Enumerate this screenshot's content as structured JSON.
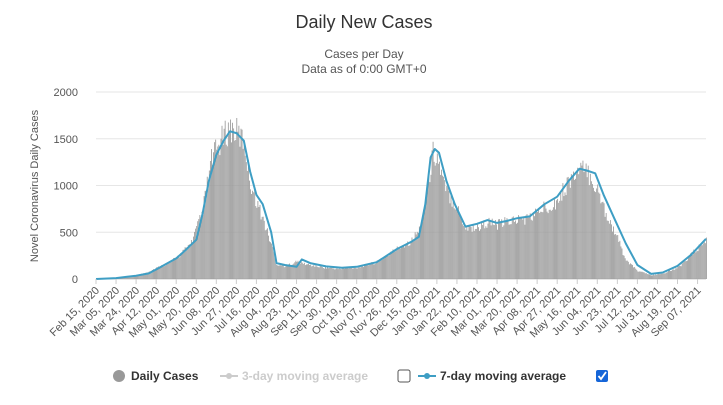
{
  "chart_data": {
    "type": "bar",
    "title": "Daily New Cases",
    "subtitle": "Cases per Day",
    "subtitle2": "Data as of 0:00 GMT+0",
    "ylabel": "Novel Coronavirus Daily Cases",
    "xlabel": "",
    "ylim": [
      0,
      2000
    ],
    "yticks": [
      0,
      500,
      1000,
      1500,
      2000
    ],
    "grid": true,
    "legend_position": "bottom",
    "x_start": "2020-02-15",
    "x_end": "2021-09-15",
    "x_tick_labels": [
      "Feb 15, 2020",
      "Mar 05, 2020",
      "Mar 24, 2020",
      "Apr 12, 2020",
      "May 01, 2020",
      "May 20, 2020",
      "Jun 08, 2020",
      "Jun 27, 2020",
      "Jul 16, 2020",
      "Aug 04, 2020",
      "Aug 23, 2020",
      "Sep 11, 2020",
      "Sep 30, 2020",
      "Oct 19, 2020",
      "Nov 07, 2020",
      "Nov 26, 2020",
      "Dec 15, 2020",
      "Jan 03, 2021",
      "Jan 22, 2021",
      "Feb 10, 2021",
      "Mar 01, 2021",
      "Mar 20, 2021",
      "Apr 08, 2021",
      "Apr 27, 2021",
      "May 16, 2021",
      "Jun 04, 2021",
      "Jun 23, 2021",
      "Jul 12, 2021",
      "Jul 31, 2021",
      "Aug 19, 2021",
      "Sep 07, 2021"
    ],
    "series": [
      {
        "name": "Daily Cases",
        "kind": "bar",
        "color": "#999999",
        "values": [
          {
            "x": "2020-02-15",
            "y": 0
          },
          {
            "x": "2020-03-01",
            "y": 5
          },
          {
            "x": "2020-03-15",
            "y": 20
          },
          {
            "x": "2020-03-31",
            "y": 60
          },
          {
            "x": "2020-04-12",
            "y": 120
          },
          {
            "x": "2020-04-25",
            "y": 180
          },
          {
            "x": "2020-05-06",
            "y": 280
          },
          {
            "x": "2020-05-15",
            "y": 400
          },
          {
            "x": "2020-05-25",
            "y": 700
          },
          {
            "x": "2020-06-03",
            "y": 1300
          },
          {
            "x": "2020-06-12",
            "y": 1500
          },
          {
            "x": "2020-06-20",
            "y": 1650
          },
          {
            "x": "2020-06-27",
            "y": 1600
          },
          {
            "x": "2020-07-04",
            "y": 1500
          },
          {
            "x": "2020-07-10",
            "y": 1050
          },
          {
            "x": "2020-07-16",
            "y": 850
          },
          {
            "x": "2020-07-24",
            "y": 580
          },
          {
            "x": "2020-08-01",
            "y": 300
          },
          {
            "x": "2020-08-04",
            "y": 160
          },
          {
            "x": "2020-08-12",
            "y": 140
          },
          {
            "x": "2020-08-23",
            "y": 190
          },
          {
            "x": "2020-09-01",
            "y": 160
          },
          {
            "x": "2020-09-15",
            "y": 130
          },
          {
            "x": "2020-10-01",
            "y": 110
          },
          {
            "x": "2020-10-19",
            "y": 125
          },
          {
            "x": "2020-11-07",
            "y": 185
          },
          {
            "x": "2020-11-26",
            "y": 330
          },
          {
            "x": "2020-12-10",
            "y": 420
          },
          {
            "x": "2020-12-18",
            "y": 560
          },
          {
            "x": "2020-12-25",
            "y": 1000
          },
          {
            "x": "2020-12-30",
            "y": 1380
          },
          {
            "x": "2021-01-03",
            "y": 1330
          },
          {
            "x": "2021-01-10",
            "y": 1000
          },
          {
            "x": "2021-01-20",
            "y": 820
          },
          {
            "x": "2021-01-30",
            "y": 560
          },
          {
            "x": "2021-02-10",
            "y": 560
          },
          {
            "x": "2021-02-20",
            "y": 620
          },
          {
            "x": "2021-03-01",
            "y": 590
          },
          {
            "x": "2021-03-15",
            "y": 640
          },
          {
            "x": "2021-03-30",
            "y": 660
          },
          {
            "x": "2021-04-15",
            "y": 780
          },
          {
            "x": "2021-04-27",
            "y": 850
          },
          {
            "x": "2021-05-08",
            "y": 1080
          },
          {
            "x": "2021-05-20",
            "y": 1190
          },
          {
            "x": "2021-05-28",
            "y": 1130
          },
          {
            "x": "2021-06-04",
            "y": 960
          },
          {
            "x": "2021-06-12",
            "y": 720
          },
          {
            "x": "2021-06-23",
            "y": 440
          },
          {
            "x": "2021-07-01",
            "y": 200
          },
          {
            "x": "2021-07-12",
            "y": 90
          },
          {
            "x": "2021-07-25",
            "y": 40
          },
          {
            "x": "2021-08-05",
            "y": 60
          },
          {
            "x": "2021-08-19",
            "y": 120
          },
          {
            "x": "2021-09-01",
            "y": 270
          },
          {
            "x": "2021-09-15",
            "y": 420
          }
        ]
      },
      {
        "name": "3-day moving average",
        "kind": "line",
        "color": "#cccccc",
        "enabled": false,
        "values": []
      },
      {
        "name": "7-day moving average",
        "kind": "line",
        "color": "#3e9ec4",
        "enabled": true,
        "values": [
          {
            "x": "2020-02-15",
            "y": 0
          },
          {
            "x": "2020-03-05",
            "y": 10
          },
          {
            "x": "2020-03-24",
            "y": 35
          },
          {
            "x": "2020-04-05",
            "y": 60
          },
          {
            "x": "2020-04-15",
            "y": 120
          },
          {
            "x": "2020-05-01",
            "y": 220
          },
          {
            "x": "2020-05-10",
            "y": 310
          },
          {
            "x": "2020-05-20",
            "y": 420
          },
          {
            "x": "2020-05-26",
            "y": 700
          },
          {
            "x": "2020-06-01",
            "y": 1050
          },
          {
            "x": "2020-06-08",
            "y": 1330
          },
          {
            "x": "2020-06-15",
            "y": 1480
          },
          {
            "x": "2020-06-21",
            "y": 1580
          },
          {
            "x": "2020-06-27",
            "y": 1560
          },
          {
            "x": "2020-07-04",
            "y": 1480
          },
          {
            "x": "2020-07-10",
            "y": 1150
          },
          {
            "x": "2020-07-16",
            "y": 900
          },
          {
            "x": "2020-07-22",
            "y": 800
          },
          {
            "x": "2020-07-30",
            "y": 500
          },
          {
            "x": "2020-08-04",
            "y": 170
          },
          {
            "x": "2020-08-12",
            "y": 150
          },
          {
            "x": "2020-08-23",
            "y": 130
          },
          {
            "x": "2020-08-28",
            "y": 210
          },
          {
            "x": "2020-09-05",
            "y": 170
          },
          {
            "x": "2020-09-20",
            "y": 135
          },
          {
            "x": "2020-10-05",
            "y": 120
          },
          {
            "x": "2020-10-19",
            "y": 130
          },
          {
            "x": "2020-11-07",
            "y": 180
          },
          {
            "x": "2020-11-26",
            "y": 320
          },
          {
            "x": "2020-12-10",
            "y": 400
          },
          {
            "x": "2020-12-17",
            "y": 450
          },
          {
            "x": "2020-12-23",
            "y": 800
          },
          {
            "x": "2020-12-28",
            "y": 1300
          },
          {
            "x": "2021-01-01",
            "y": 1390
          },
          {
            "x": "2021-01-05",
            "y": 1350
          },
          {
            "x": "2021-01-12",
            "y": 1050
          },
          {
            "x": "2021-01-20",
            "y": 800
          },
          {
            "x": "2021-01-30",
            "y": 560
          },
          {
            "x": "2021-02-10",
            "y": 590
          },
          {
            "x": "2021-02-20",
            "y": 630
          },
          {
            "x": "2021-03-01",
            "y": 600
          },
          {
            "x": "2021-03-10",
            "y": 620
          },
          {
            "x": "2021-03-20",
            "y": 650
          },
          {
            "x": "2021-04-01",
            "y": 670
          },
          {
            "x": "2021-04-15",
            "y": 800
          },
          {
            "x": "2021-04-27",
            "y": 880
          },
          {
            "x": "2021-05-08",
            "y": 1050
          },
          {
            "x": "2021-05-18",
            "y": 1180
          },
          {
            "x": "2021-05-25",
            "y": 1160
          },
          {
            "x": "2021-06-02",
            "y": 1130
          },
          {
            "x": "2021-06-10",
            "y": 900
          },
          {
            "x": "2021-06-20",
            "y": 650
          },
          {
            "x": "2021-07-01",
            "y": 380
          },
          {
            "x": "2021-07-12",
            "y": 150
          },
          {
            "x": "2021-07-25",
            "y": 55
          },
          {
            "x": "2021-08-05",
            "y": 70
          },
          {
            "x": "2021-08-19",
            "y": 140
          },
          {
            "x": "2021-09-01",
            "y": 260
          },
          {
            "x": "2021-09-15",
            "y": 430
          }
        ]
      }
    ]
  },
  "legend": {
    "items": [
      {
        "label": "Daily Cases",
        "color": "#999999",
        "symbol": "circle-icon",
        "enabled": true
      },
      {
        "label": "3-day moving average",
        "color": "#cccccc",
        "symbol": "line-marker-icon",
        "enabled": false,
        "checkbox": false
      },
      {
        "label": "7-day moving average",
        "color": "#3e9ec4",
        "symbol": "line-marker-icon",
        "enabled": true,
        "checkbox": true
      }
    ],
    "checkbox_color": "#1565d8"
  }
}
